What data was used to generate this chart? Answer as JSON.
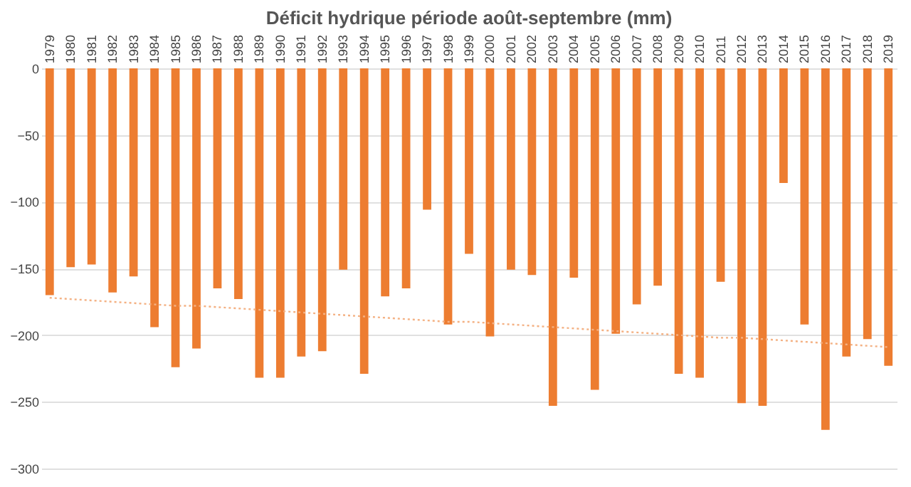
{
  "chart_data": {
    "type": "bar",
    "title": "Déficit hydrique période août-septembre (mm)",
    "categories": [
      "1979",
      "1980",
      "1981",
      "1982",
      "1983",
      "1984",
      "1985",
      "1986",
      "1987",
      "1988",
      "1989",
      "1990",
      "1991",
      "1992",
      "1993",
      "1994",
      "1995",
      "1996",
      "1997",
      "1998",
      "1999",
      "2000",
      "2001",
      "2002",
      "2003",
      "2004",
      "2005",
      "2006",
      "2007",
      "2008",
      "2009",
      "2010",
      "2011",
      "2012",
      "2013",
      "2014",
      "2015",
      "2016",
      "2017",
      "2018",
      "2019"
    ],
    "series": [
      {
        "color": "#ed7d31",
        "values": [
          -170,
          -149,
          -147,
          -168,
          -156,
          -194,
          -224,
          -210,
          -165,
          -173,
          -232,
          -232,
          -216,
          -212,
          -151,
          -229,
          -171,
          -165,
          -106,
          -192,
          -139,
          -201,
          -151,
          -155,
          -253,
          -157,
          -241,
          -199,
          -177,
          -163,
          -229,
          -232,
          -160,
          -251,
          -253,
          -86,
          -192,
          -271,
          -216,
          -203,
          -223
        ]
      },
      {
        "type": "line",
        "color": "#f4b183",
        "line_style": "dotted",
        "values": [
          -172,
          -173,
          -174,
          -175,
          -176,
          -177,
          -178,
          -178,
          -179,
          -180,
          -181,
          -182,
          -183,
          -184,
          -185,
          -186,
          -187,
          -188,
          -189,
          -190,
          -190,
          -191,
          -192,
          -193,
          -194,
          -195,
          -196,
          -197,
          -198,
          -199,
          -200,
          -201,
          -202,
          -202,
          -203,
          -204,
          -205,
          -206,
          -207,
          -208,
          -209
        ]
      }
    ],
    "ylim": [
      -300,
      0
    ],
    "yticks": [
      -300,
      -250,
      -200,
      -150,
      -100,
      -50,
      0
    ],
    "grid": "y"
  }
}
